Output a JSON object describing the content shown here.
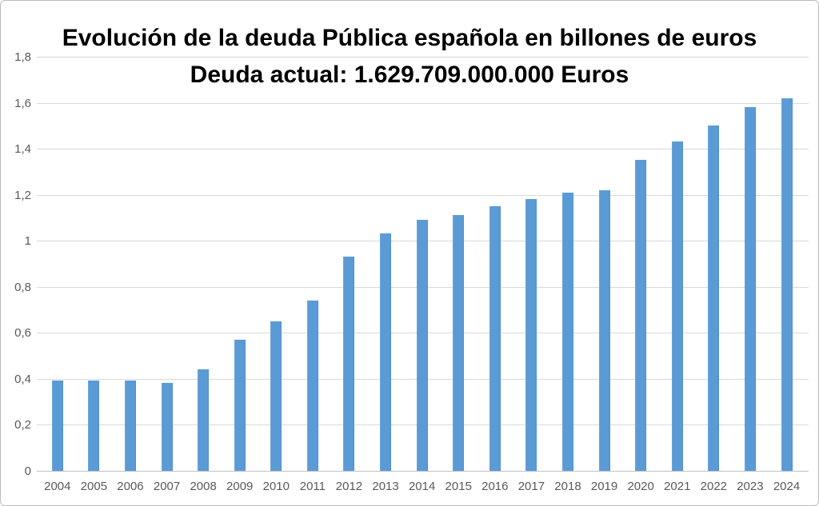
{
  "frame": {
    "background_color": "#ffffff",
    "border_color": "#bdbdbd"
  },
  "chart_data": {
    "type": "bar",
    "title": "Evolución de la deuda Pública española en billones de euros",
    "subtitle": "Deuda actual: 1.629.709.000.000 Euros",
    "xlabel": "",
    "ylabel": "",
    "categories": [
      "2004",
      "2005",
      "2006",
      "2007",
      "2008",
      "2009",
      "2010",
      "2011",
      "2012",
      "2013",
      "2014",
      "2015",
      "2016",
      "2017",
      "2018",
      "2019",
      "2020",
      "2021",
      "2022",
      "2023",
      "2024"
    ],
    "values": [
      0.39,
      0.39,
      0.39,
      0.38,
      0.44,
      0.57,
      0.65,
      0.74,
      0.93,
      1.03,
      1.09,
      1.11,
      1.15,
      1.18,
      1.21,
      1.22,
      1.35,
      1.43,
      1.5,
      1.58,
      1.62
    ],
    "ylim": [
      0,
      1.8
    ],
    "y_ticks": [
      {
        "value": 0.0,
        "label": "0"
      },
      {
        "value": 0.2,
        "label": "0,2"
      },
      {
        "value": 0.4,
        "label": "0,4"
      },
      {
        "value": 0.6,
        "label": "0,6"
      },
      {
        "value": 0.8,
        "label": "0,8"
      },
      {
        "value": 1.0,
        "label": "1"
      },
      {
        "value": 1.2,
        "label": "1,2"
      },
      {
        "value": 1.4,
        "label": "1,4"
      },
      {
        "value": 1.6,
        "label": "1,6"
      },
      {
        "value": 1.8,
        "label": "1,8"
      }
    ],
    "grid": true,
    "legend": "none",
    "bar_color": "#5b9bd5",
    "gridline_color": "#d9d9d9",
    "axis_label_color": "#595959",
    "title_color": "#000000"
  }
}
